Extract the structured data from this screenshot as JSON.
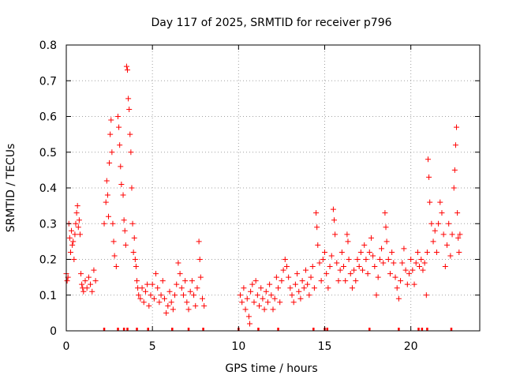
{
  "chart_data": {
    "type": "scatter",
    "title": "Day 117 of 2025, SRMTID for receiver p796",
    "xlabel": "GPS time / hours",
    "ylabel": "SRMTID / TECUs",
    "xlim": [
      0,
      24
    ],
    "ylim": [
      0,
      0.8
    ],
    "xticks": [
      "0",
      "5",
      "10",
      "15",
      "20"
    ],
    "yticks": [
      "0",
      "0.1",
      "0.2",
      "0.3",
      "0.4",
      "0.5",
      "0.6",
      "0.7",
      "0.8"
    ],
    "grid": true,
    "marker": "plus",
    "series": [
      {
        "name": "SRMTID",
        "color": "#ff0000",
        "points": [
          [
            0.0,
            0.16
          ],
          [
            0.05,
            0.14
          ],
          [
            0.1,
            0.15
          ],
          [
            0.15,
            0.3
          ],
          [
            0.2,
            0.26
          ],
          [
            0.25,
            0.22
          ],
          [
            0.3,
            0.28
          ],
          [
            0.35,
            0.24
          ],
          [
            0.4,
            0.25
          ],
          [
            0.45,
            0.2
          ],
          [
            0.5,
            0.27
          ],
          [
            0.55,
            0.3
          ],
          [
            0.6,
            0.33
          ],
          [
            0.65,
            0.35
          ],
          [
            0.7,
            0.29
          ],
          [
            0.75,
            0.31
          ],
          [
            0.8,
            0.27
          ],
          [
            0.85,
            0.16
          ],
          [
            0.9,
            0.13
          ],
          [
            0.95,
            0.12
          ],
          [
            1.0,
            0.11
          ],
          [
            1.1,
            0.14
          ],
          [
            1.2,
            0.12
          ],
          [
            1.3,
            0.15
          ],
          [
            1.4,
            0.13
          ],
          [
            1.5,
            0.11
          ],
          [
            1.6,
            0.17
          ],
          [
            1.7,
            0.14
          ],
          [
            2.2,
            0.3
          ],
          [
            2.3,
            0.36
          ],
          [
            2.35,
            0.42
          ],
          [
            2.4,
            0.38
          ],
          [
            2.45,
            0.32
          ],
          [
            2.5,
            0.47
          ],
          [
            2.55,
            0.55
          ],
          [
            2.6,
            0.59
          ],
          [
            2.65,
            0.5
          ],
          [
            2.7,
            0.3
          ],
          [
            2.75,
            0.25
          ],
          [
            2.8,
            0.21
          ],
          [
            2.9,
            0.18
          ],
          [
            3.0,
            0.6
          ],
          [
            3.05,
            0.57
          ],
          [
            3.1,
            0.52
          ],
          [
            3.15,
            0.46
          ],
          [
            3.2,
            0.41
          ],
          [
            3.3,
            0.38
          ],
          [
            3.35,
            0.31
          ],
          [
            3.4,
            0.28
          ],
          [
            3.45,
            0.24
          ],
          [
            3.5,
            0.74
          ],
          [
            3.55,
            0.73
          ],
          [
            3.6,
            0.65
          ],
          [
            3.65,
            0.62
          ],
          [
            3.7,
            0.55
          ],
          [
            3.75,
            0.5
          ],
          [
            3.8,
            0.4
          ],
          [
            3.85,
            0.3
          ],
          [
            3.9,
            0.22
          ],
          [
            3.95,
            0.26
          ],
          [
            4.0,
            0.2
          ],
          [
            4.05,
            0.18
          ],
          [
            4.1,
            0.14
          ],
          [
            4.15,
            0.12
          ],
          [
            4.2,
            0.1
          ],
          [
            4.3,
            0.09
          ],
          [
            4.4,
            0.12
          ],
          [
            4.5,
            0.08
          ],
          [
            4.6,
            0.11
          ],
          [
            4.7,
            0.13
          ],
          [
            4.8,
            0.07
          ],
          [
            4.9,
            0.1
          ],
          [
            5.0,
            0.13
          ],
          [
            5.1,
            0.09
          ],
          [
            5.2,
            0.16
          ],
          [
            5.3,
            0.12
          ],
          [
            5.4,
            0.08
          ],
          [
            5.5,
            0.1
          ],
          [
            5.6,
            0.14
          ],
          [
            5.7,
            0.09
          ],
          [
            5.8,
            0.05
          ],
          [
            5.9,
            0.07
          ],
          [
            6.0,
            0.11
          ],
          [
            6.1,
            0.08
          ],
          [
            6.2,
            0.06
          ],
          [
            6.3,
            0.1
          ],
          [
            6.4,
            0.13
          ],
          [
            6.5,
            0.19
          ],
          [
            6.6,
            0.16
          ],
          [
            6.7,
            0.12
          ],
          [
            6.8,
            0.1
          ],
          [
            6.9,
            0.14
          ],
          [
            7.0,
            0.08
          ],
          [
            7.1,
            0.06
          ],
          [
            7.2,
            0.11
          ],
          [
            7.3,
            0.14
          ],
          [
            7.4,
            0.1
          ],
          [
            7.5,
            0.07
          ],
          [
            7.6,
            0.12
          ],
          [
            7.7,
            0.25
          ],
          [
            7.75,
            0.2
          ],
          [
            7.8,
            0.15
          ],
          [
            7.9,
            0.09
          ],
          [
            8.0,
            0.07
          ],
          [
            10.1,
            0.1
          ],
          [
            10.2,
            0.08
          ],
          [
            10.3,
            0.12
          ],
          [
            10.4,
            0.06
          ],
          [
            10.5,
            0.09
          ],
          [
            10.6,
            0.04
          ],
          [
            10.65,
            0.02
          ],
          [
            10.7,
            0.11
          ],
          [
            10.8,
            0.13
          ],
          [
            10.9,
            0.08
          ],
          [
            11.0,
            0.14
          ],
          [
            11.1,
            0.1
          ],
          [
            11.2,
            0.07
          ],
          [
            11.3,
            0.12
          ],
          [
            11.4,
            0.09
          ],
          [
            11.5,
            0.06
          ],
          [
            11.6,
            0.11
          ],
          [
            11.7,
            0.08
          ],
          [
            11.8,
            0.13
          ],
          [
            11.9,
            0.1
          ],
          [
            12.0,
            0.06
          ],
          [
            12.1,
            0.09
          ],
          [
            12.2,
            0.15
          ],
          [
            12.3,
            0.12
          ],
          [
            12.4,
            0.08
          ],
          [
            12.5,
            0.14
          ],
          [
            12.6,
            0.17
          ],
          [
            12.7,
            0.2
          ],
          [
            12.8,
            0.18
          ],
          [
            12.9,
            0.15
          ],
          [
            13.0,
            0.12
          ],
          [
            13.1,
            0.1
          ],
          [
            13.2,
            0.08
          ],
          [
            13.3,
            0.13
          ],
          [
            13.4,
            0.16
          ],
          [
            13.5,
            0.11
          ],
          [
            13.6,
            0.09
          ],
          [
            13.7,
            0.14
          ],
          [
            13.8,
            0.12
          ],
          [
            13.9,
            0.17
          ],
          [
            14.0,
            0.13
          ],
          [
            14.1,
            0.1
          ],
          [
            14.2,
            0.15
          ],
          [
            14.3,
            0.18
          ],
          [
            14.4,
            0.12
          ],
          [
            14.5,
            0.33
          ],
          [
            14.55,
            0.29
          ],
          [
            14.6,
            0.24
          ],
          [
            14.7,
            0.19
          ],
          [
            14.8,
            0.14
          ],
          [
            14.9,
            0.2
          ],
          [
            15.0,
            0.22
          ],
          [
            15.1,
            0.16
          ],
          [
            15.2,
            0.12
          ],
          [
            15.3,
            0.18
          ],
          [
            15.4,
            0.21
          ],
          [
            15.5,
            0.34
          ],
          [
            15.55,
            0.31
          ],
          [
            15.6,
            0.27
          ],
          [
            15.7,
            0.19
          ],
          [
            15.8,
            0.14
          ],
          [
            15.9,
            0.17
          ],
          [
            16.0,
            0.22
          ],
          [
            16.1,
            0.18
          ],
          [
            16.2,
            0.14
          ],
          [
            16.3,
            0.27
          ],
          [
            16.35,
            0.25
          ],
          [
            16.4,
            0.2
          ],
          [
            16.5,
            0.16
          ],
          [
            16.6,
            0.12
          ],
          [
            16.7,
            0.17
          ],
          [
            16.8,
            0.14
          ],
          [
            16.9,
            0.2
          ],
          [
            17.0,
            0.18
          ],
          [
            17.1,
            0.22
          ],
          [
            17.2,
            0.17
          ],
          [
            17.3,
            0.24
          ],
          [
            17.4,
            0.2
          ],
          [
            17.5,
            0.16
          ],
          [
            17.6,
            0.22
          ],
          [
            17.7,
            0.26
          ],
          [
            17.8,
            0.21
          ],
          [
            17.9,
            0.18
          ],
          [
            18.0,
            0.1
          ],
          [
            18.1,
            0.15
          ],
          [
            18.2,
            0.2
          ],
          [
            18.3,
            0.23
          ],
          [
            18.4,
            0.19
          ],
          [
            18.5,
            0.33
          ],
          [
            18.55,
            0.29
          ],
          [
            18.6,
            0.25
          ],
          [
            18.7,
            0.2
          ],
          [
            18.8,
            0.16
          ],
          [
            18.9,
            0.22
          ],
          [
            19.0,
            0.19
          ],
          [
            19.1,
            0.15
          ],
          [
            19.2,
            0.12
          ],
          [
            19.3,
            0.09
          ],
          [
            19.4,
            0.14
          ],
          [
            19.5,
            0.19
          ],
          [
            19.6,
            0.23
          ],
          [
            19.7,
            0.17
          ],
          [
            19.8,
            0.13
          ],
          [
            19.9,
            0.16
          ],
          [
            20.0,
            0.2
          ],
          [
            20.1,
            0.17
          ],
          [
            20.2,
            0.13
          ],
          [
            20.3,
            0.19
          ],
          [
            20.4,
            0.22
          ],
          [
            20.5,
            0.18
          ],
          [
            20.6,
            0.2
          ],
          [
            20.7,
            0.17
          ],
          [
            20.8,
            0.19
          ],
          [
            20.9,
            0.1
          ],
          [
            20.95,
            0.22
          ],
          [
            21.0,
            0.48
          ],
          [
            21.05,
            0.43
          ],
          [
            21.1,
            0.36
          ],
          [
            21.2,
            0.3
          ],
          [
            21.3,
            0.25
          ],
          [
            21.4,
            0.28
          ],
          [
            21.5,
            0.22
          ],
          [
            21.6,
            0.3
          ],
          [
            21.7,
            0.36
          ],
          [
            21.8,
            0.33
          ],
          [
            21.9,
            0.27
          ],
          [
            22.0,
            0.18
          ],
          [
            22.1,
            0.24
          ],
          [
            22.2,
            0.3
          ],
          [
            22.3,
            0.21
          ],
          [
            22.4,
            0.27
          ],
          [
            22.5,
            0.4
          ],
          [
            22.55,
            0.45
          ],
          [
            22.6,
            0.52
          ],
          [
            22.65,
            0.57
          ],
          [
            22.7,
            0.33
          ],
          [
            22.75,
            0.26
          ],
          [
            22.8,
            0.22
          ],
          [
            22.85,
            0.27
          ]
        ]
      }
    ],
    "rug_x": [
      2.2,
      3.0,
      3.35,
      3.55,
      4.1,
      4.75,
      6.15,
      7.1,
      7.95,
      10.0,
      11.15,
      12.3,
      14.35,
      15.0,
      15.15,
      17.6,
      19.3,
      20.45,
      20.65,
      20.95,
      22.35
    ]
  }
}
